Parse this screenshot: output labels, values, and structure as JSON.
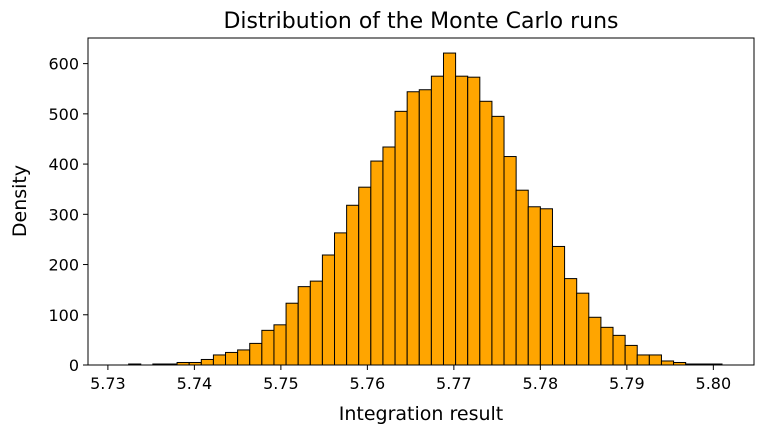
{
  "chart_data": {
    "type": "bar",
    "title": "Distribution of the Monte Carlo runs",
    "xlabel": "Integration result",
    "ylabel": "Density",
    "xlim": [
      5.7277,
      5.8047
    ],
    "ylim": [
      0,
      651
    ],
    "grid": false,
    "x_ticks": [
      "5.73",
      "5.74",
      "5.75",
      "5.76",
      "5.77",
      "5.78",
      "5.79",
      "5.80"
    ],
    "y_ticks": [
      "0",
      "100",
      "200",
      "300",
      "400",
      "500",
      "600"
    ],
    "bin_edges": [
      5.731,
      5.7324,
      5.7338,
      5.7352,
      5.7366,
      5.738,
      5.7394,
      5.7408,
      5.7422,
      5.7436,
      5.745,
      5.7464,
      5.7478,
      5.7492,
      5.7506,
      5.752,
      5.7534,
      5.7548,
      5.7562,
      5.7576,
      5.759,
      5.7604,
      5.7618,
      5.7632,
      5.7646,
      5.766,
      5.7674,
      5.7688,
      5.7702,
      5.7716,
      5.773,
      5.7744,
      5.7758,
      5.7772,
      5.7786,
      5.78,
      5.7814,
      5.7828,
      5.7842,
      5.7856,
      5.787,
      5.7884,
      5.7898,
      5.7912,
      5.7926,
      5.794,
      5.7954,
      5.7968,
      5.7982,
      5.7996,
      5.801
    ],
    "values": [
      0,
      2,
      0,
      2,
      2,
      5,
      5,
      11,
      20,
      25,
      30,
      43,
      69,
      80,
      123,
      156,
      167,
      219,
      263,
      318,
      354,
      406,
      434,
      505,
      544,
      548,
      575,
      621,
      575,
      573,
      525,
      495,
      415,
      348,
      315,
      311,
      236,
      172,
      143,
      95,
      75,
      59,
      39,
      20,
      20,
      8,
      5,
      2,
      2,
      2
    ],
    "bar_color": "#FFA500",
    "edge_color": "#000000"
  }
}
